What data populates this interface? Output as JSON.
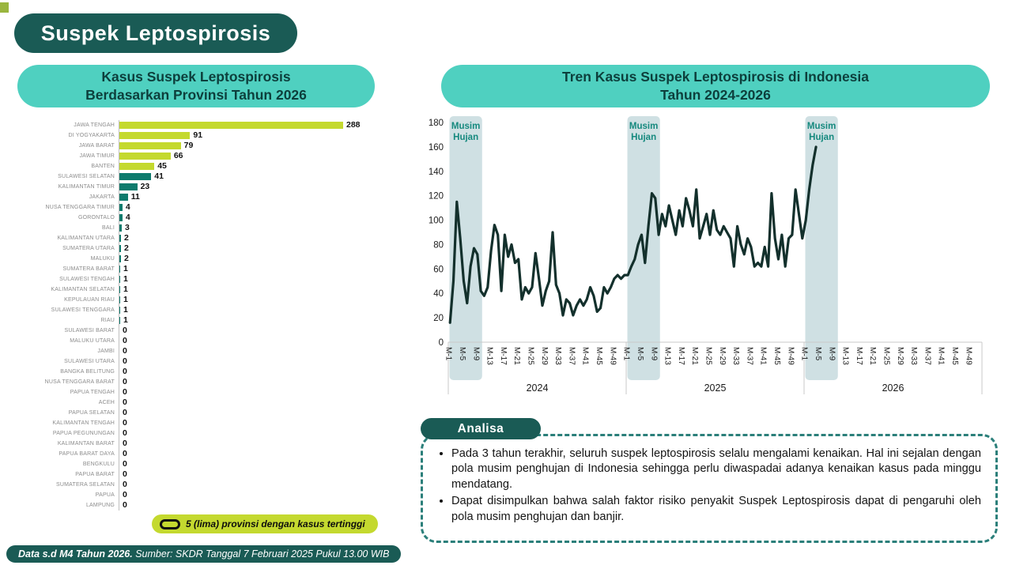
{
  "page": {
    "title": "Suspek Leptospirosis",
    "footer": {
      "bold": "Data s.d M4 Tahun 2026.",
      "source": "Sumber: SKDR Tanggal 7 Februari 2025 Pukul 13.00 WIB"
    }
  },
  "colors": {
    "dark_teal": "#1a5b55",
    "light_teal": "#4fd0c0",
    "highlight_yellow": "#c4d92f",
    "bar_teal": "#0e7b6d",
    "band_fill": "#cfe0e3",
    "band_text": "#15897e",
    "line": "#13302c"
  },
  "bar_panel": {
    "title_line1": "Kasus Suspek Leptospirosis",
    "title_line2": "Berdasarkan Provinsi Tahun 2026",
    "legend": "5 (lima) provinsi dengan kasus tertinggi"
  },
  "trend_panel": {
    "title_line1": "Tren Kasus Suspek Leptospirosis di Indonesia",
    "title_line2": "Tahun 2024-2026"
  },
  "analisa": {
    "header": "Analisa",
    "bullets": [
      "Pada 3 tahun terakhir, seluruh suspek leptospirosis selalu mengalami kenaikan. Hal ini sejalan dengan pola musim penghujan di Indonesia sehingga perlu diwaspadai adanya kenaikan kasus pada minggu mendatang.",
      "Dapat disimpulkan bahwa salah faktor risiko penyakit Suspek Leptospirosis dapat di pengaruhi oleh pola musim penghujan dan banjir."
    ]
  },
  "chart_data": [
    {
      "type": "bar",
      "orientation": "horizontal",
      "title": "Kasus Suspek Leptospirosis Berdasarkan Provinsi Tahun 2026",
      "categories": [
        "JAWA TENGAH",
        "DI YOGYAKARTA",
        "JAWA BARAT",
        "JAWA TIMUR",
        "BANTEN",
        "SULAWESI SELATAN",
        "KALIMANTAN TIMUR",
        "JAKARTA",
        "NUSA TENGGARA TIMUR",
        "GORONTALO",
        "BALI",
        "KALIMANTAN UTARA",
        "SUMATERA UTARA",
        "MALUKU",
        "SUMATERA BARAT",
        "SULAWESI TENGAH",
        "KALIMANTAN SELATAN",
        "KEPULAUAN RIAU",
        "SULAWESI TENGGARA",
        "RIAU",
        "SULAWESI BARAT",
        "MALUKU UTARA",
        "JAMBI",
        "SULAWESI UTARA",
        "BANGKA BELITUNG",
        "NUSA TENGGARA BARAT",
        "PAPUA TENGAH",
        "ACEH",
        "PAPUA SELATAN",
        "KALIMANTAN TENGAH",
        "PAPUA PEGUNUNGAN",
        "KALIMANTAN BARAT",
        "PAPUA BARAT DAYA",
        "BENGKULU",
        "PAPUA BARAT",
        "SUMATERA SELATAN",
        "PAPUA",
        "LAMPUNG"
      ],
      "values": [
        288,
        91,
        79,
        66,
        45,
        41,
        23,
        11,
        4,
        4,
        3,
        2,
        2,
        2,
        1,
        1,
        1,
        1,
        1,
        1,
        0,
        0,
        0,
        0,
        0,
        0,
        0,
        0,
        0,
        0,
        0,
        0,
        0,
        0,
        0,
        0,
        0,
        0
      ],
      "highlight_top_n": 5,
      "highlight_color": "#c4d92f",
      "base_color": "#0e7b6d",
      "xlim": [
        0,
        300
      ],
      "grid": false
    },
    {
      "type": "line",
      "title": "Tren Kasus Suspek Leptospirosis di Indonesia Tahun 2024-2026",
      "ylim": [
        0,
        180
      ],
      "ytick_step": 20,
      "x_tick_labels": [
        "M-1",
        "M-5",
        "M-9",
        "M-13",
        "M-17",
        "M-21",
        "M-25",
        "M-29",
        "M-33",
        "M-37",
        "M-41",
        "M-45",
        "M-49"
      ],
      "years": [
        {
          "year": "2024",
          "weeks": 52,
          "values": [
            16,
            50,
            115,
            85,
            50,
            32,
            62,
            77,
            72,
            42,
            38,
            45,
            75,
            96,
            88,
            42,
            88,
            70,
            80,
            65,
            68,
            35,
            45,
            40,
            45,
            73,
            52,
            30,
            42,
            50,
            90,
            47,
            40,
            22,
            35,
            32,
            22,
            30,
            35,
            30,
            35,
            45,
            38,
            25,
            28,
            45,
            40,
            45,
            52,
            55,
            52,
            55
          ]
        },
        {
          "year": "2025",
          "weeks": 52,
          "values": [
            55,
            62,
            68,
            80,
            88,
            65,
            95,
            122,
            118,
            88,
            105,
            95,
            112,
            100,
            88,
            108,
            95,
            118,
            108,
            95,
            125,
            85,
            95,
            105,
            88,
            108,
            92,
            88,
            95,
            90,
            85,
            62,
            95,
            80,
            72,
            85,
            78,
            62,
            65,
            62,
            78,
            62,
            122,
            85,
            68,
            88,
            62,
            85,
            88,
            125,
            105,
            85
          ]
        },
        {
          "year": "2026",
          "weeks": 4,
          "values": [
            100,
            125,
            145,
            160
          ]
        }
      ],
      "bands": {
        "label_line1": "Musim",
        "label_line2": "Hujan",
        "week_start": 1,
        "week_end": 10,
        "applies_to": [
          "2024",
          "2025",
          "2026"
        ],
        "color": "#cfe0e3",
        "text_color": "#15897e"
      },
      "line_color": "#13302c",
      "grid": false,
      "legend_position": "none"
    }
  ]
}
